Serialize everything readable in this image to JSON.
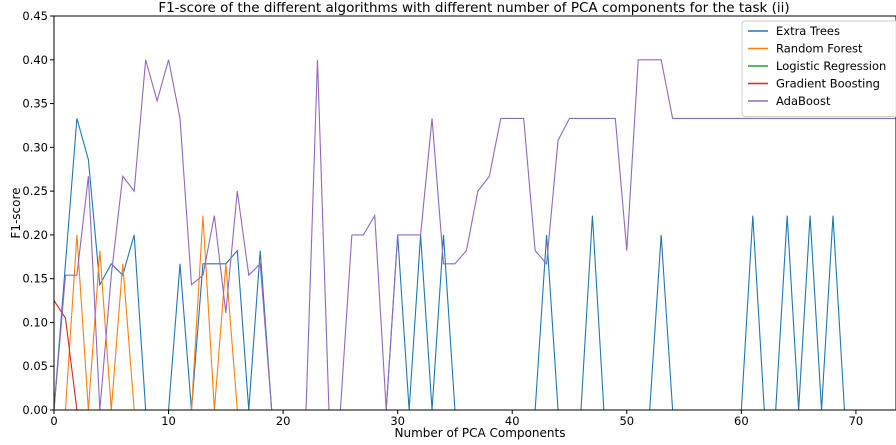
{
  "chart_data": {
    "type": "line",
    "title": "F1-score of the different algorithms with different number of PCA components for the task (ii)",
    "xlabel": "Number of PCA Components",
    "ylabel": "F1-score",
    "xlim": [
      0,
      73.5
    ],
    "ylim": [
      0,
      0.45
    ],
    "xticks": [
      0,
      10,
      20,
      30,
      40,
      50,
      60,
      70
    ],
    "yticks": [
      0.0,
      0.05,
      0.1,
      0.15,
      0.2,
      0.25,
      0.3,
      0.35,
      0.4,
      0.45
    ],
    "ytick_labels": [
      "0.00",
      "0.05",
      "0.10",
      "0.15",
      "0.20",
      "0.25",
      "0.30",
      "0.35",
      "0.40",
      "0.45"
    ],
    "grid": false,
    "legend_position": "top-right",
    "series": [
      {
        "name": "Extra Trees",
        "color": "#1f77b4",
        "x": [
          0,
          1,
          2,
          3,
          4,
          5,
          6,
          7,
          8,
          9,
          10,
          11,
          12,
          13,
          14,
          15,
          16,
          17,
          18,
          19,
          20,
          21,
          22,
          23,
          24,
          25,
          26,
          27,
          28,
          29,
          30,
          31,
          32,
          33,
          34,
          35,
          36,
          37,
          38,
          39,
          40,
          41,
          42,
          43,
          44,
          45,
          46,
          47,
          48,
          49,
          50,
          51,
          52,
          53,
          54,
          55,
          56,
          57,
          58,
          59,
          60,
          61,
          62,
          63,
          64,
          65,
          66,
          67,
          68,
          69,
          70,
          71,
          72,
          73,
          74
        ],
        "values": [
          0,
          0.167,
          0.333,
          0.286,
          0.143,
          0.167,
          0.154,
          0.2,
          0,
          0,
          0,
          0.167,
          0,
          0.167,
          0.167,
          0.167,
          0.182,
          0,
          0.182,
          0,
          0,
          0,
          0,
          0,
          0,
          0,
          0,
          0,
          0,
          0,
          0.2,
          0,
          0.2,
          0,
          0.2,
          0,
          0,
          0,
          0,
          0,
          0,
          0,
          0,
          0.2,
          0,
          0,
          0,
          0.222,
          0,
          0,
          0,
          0,
          0,
          0.2,
          0,
          0,
          0,
          0,
          0,
          0,
          0,
          0.222,
          0,
          0,
          0.222,
          0,
          0.222,
          0,
          0.222,
          0,
          0,
          0,
          0,
          0,
          0
        ]
      },
      {
        "name": "Random Forest",
        "color": "#ff7f0e",
        "x": [
          0,
          1,
          2,
          3,
          4,
          5,
          6,
          7,
          8,
          9,
          10,
          11,
          12,
          13,
          14,
          15,
          16,
          17,
          18,
          19,
          20,
          21,
          22,
          23,
          24,
          25,
          26,
          27,
          28,
          29,
          30,
          31,
          32,
          33,
          34,
          35,
          36,
          37,
          38,
          39,
          40,
          41,
          42,
          43,
          44,
          45,
          46,
          47,
          48,
          49,
          50,
          51,
          52,
          53,
          54,
          55,
          56,
          57,
          58,
          59,
          60,
          61,
          62,
          63,
          64,
          65,
          66,
          67,
          68,
          69,
          70,
          71,
          72,
          73,
          74
        ],
        "values": [
          0,
          0,
          0.2,
          0,
          0.182,
          0,
          0.167,
          0,
          0,
          0,
          0,
          0,
          0,
          0.222,
          0,
          0.167,
          0,
          0,
          0,
          0,
          0,
          0,
          0,
          0,
          0,
          0,
          0,
          0,
          0,
          0,
          0,
          0,
          0,
          0,
          0,
          0,
          0,
          0,
          0,
          0,
          0,
          0,
          0,
          0,
          0,
          0,
          0,
          0,
          0,
          0,
          0,
          0,
          0,
          0,
          0,
          0,
          0,
          0,
          0,
          0,
          0,
          0,
          0,
          0,
          0,
          0,
          0,
          0,
          0,
          0,
          0,
          0,
          0,
          0,
          0
        ]
      },
      {
        "name": "Logistic Regression",
        "color": "#2ca02c",
        "x": [
          0,
          74
        ],
        "values": [
          0,
          0
        ]
      },
      {
        "name": "Gradient Boosting",
        "color": "#d62728",
        "x": [
          0,
          1,
          2,
          3,
          74
        ],
        "values": [
          0.125,
          0.105,
          0,
          0,
          0
        ]
      },
      {
        "name": "AdaBoost",
        "color": "#9467bd",
        "x": [
          0,
          1,
          2,
          3,
          4,
          5,
          6,
          7,
          8,
          9,
          10,
          11,
          12,
          13,
          14,
          15,
          16,
          17,
          18,
          19,
          20,
          21,
          22,
          23,
          24,
          25,
          26,
          27,
          28,
          29,
          30,
          31,
          32,
          33,
          34,
          35,
          36,
          37,
          38,
          39,
          40,
          41,
          42,
          43,
          44,
          45,
          46,
          47,
          48,
          49,
          50,
          51,
          52,
          53,
          54,
          55,
          56,
          57,
          58,
          59,
          60,
          61,
          62,
          63,
          64,
          65,
          66,
          67,
          68,
          69,
          70,
          71,
          72,
          73,
          74
        ],
        "values": [
          0,
          0.154,
          0.154,
          0.267,
          0,
          0.154,
          0.267,
          0.25,
          0.4,
          0.353,
          0.4,
          0.333,
          0.143,
          0.154,
          0.222,
          0.111,
          0.25,
          0.154,
          0.167,
          0,
          0,
          0,
          0,
          0.4,
          0,
          0,
          0.2,
          0.2,
          0.222,
          0,
          0.2,
          0.2,
          0.2,
          0.333,
          0.167,
          0.167,
          0.182,
          0.25,
          0.267,
          0.333,
          0.333,
          0.333,
          0.182,
          0.167,
          0.308,
          0.333,
          0.333,
          0.333,
          0.333,
          0.333,
          0.182,
          0.4,
          0.4,
          0.4,
          0.333,
          0.333,
          0.333,
          0.333,
          0.333,
          0.333,
          0.333,
          0.333,
          0.333,
          0.333,
          0.333,
          0.333,
          0.333,
          0.333,
          0.333,
          0.333,
          0.333,
          0.333,
          0.333,
          0.333,
          0.333
        ]
      }
    ]
  }
}
